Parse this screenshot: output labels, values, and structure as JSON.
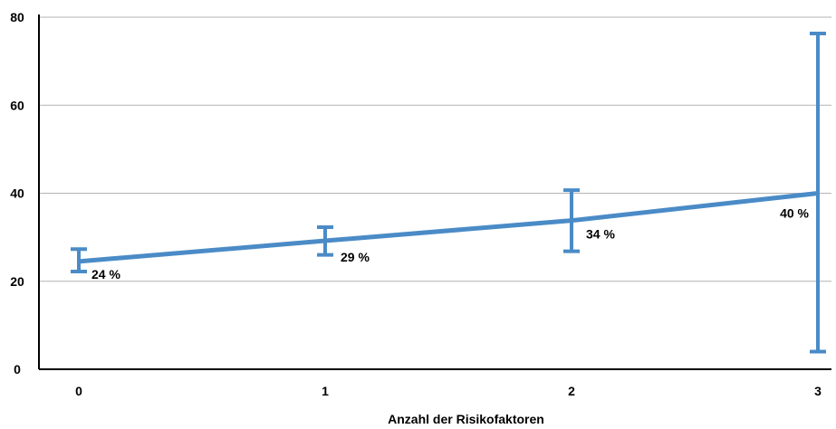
{
  "chart_data": {
    "type": "line",
    "title": "",
    "xlabel": "Anzahl der Risikofaktoren",
    "ylabel": "",
    "x": [
      0,
      1,
      2,
      3
    ],
    "xticks": [
      "0",
      "1",
      "2",
      "3"
    ],
    "ylim": [
      0,
      80
    ],
    "yticks": [
      0,
      20,
      40,
      60,
      80
    ],
    "grid": true,
    "legend": "none",
    "series": [
      {
        "values": [
          24.5,
          29.2,
          33.8,
          40.0
        ],
        "error_low": [
          22.2,
          26.0,
          26.8,
          4.0
        ],
        "error_high": [
          27.3,
          32.3,
          40.7,
          76.3
        ],
        "labels": [
          "24 %",
          "29 %",
          "34 %",
          "40 %"
        ],
        "color": "#4a8bc7"
      }
    ]
  }
}
